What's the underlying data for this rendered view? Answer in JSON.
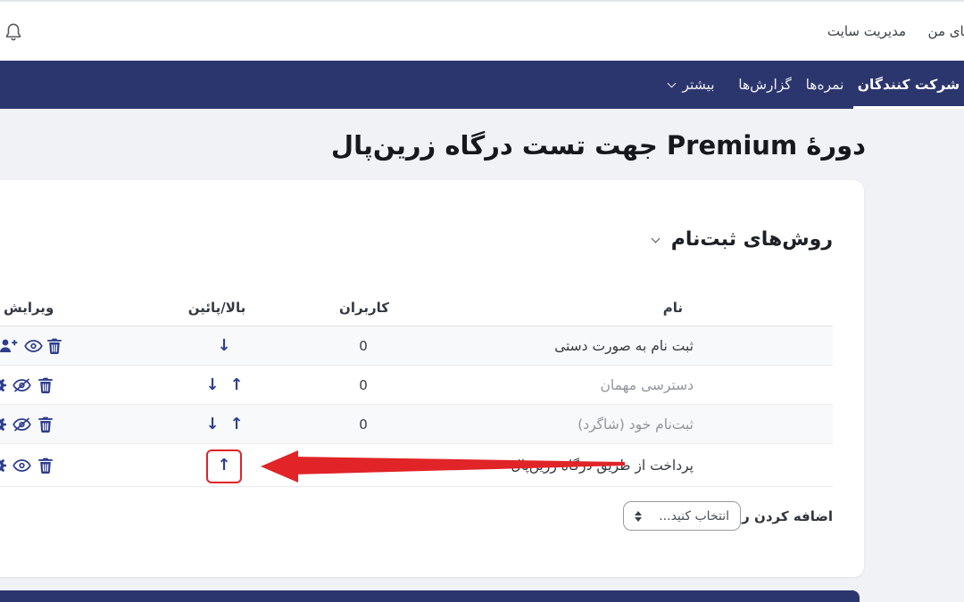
{
  "topbar": {
    "links": [
      {
        "label": "دوره‌های من"
      },
      {
        "label": "مدیریت سایت"
      }
    ]
  },
  "navbar": {
    "tabs": [
      {
        "label": "شرکت کنندگان",
        "active": true
      },
      {
        "label": "نمره‌ها",
        "active": false
      },
      {
        "label": "گزارش‌ها",
        "active": false
      },
      {
        "label": "بیشتر",
        "active": false,
        "has_dropdown": true
      }
    ]
  },
  "page_title": "دورهٔ Premium جهت تست درگاه زرین‌پال",
  "enrol_section": {
    "title": "روش‌های ثبت‌نام",
    "table": {
      "headers": {
        "name": "نام",
        "users": "کاربران",
        "updown": "بالا/پائین",
        "edit": "ویرایش"
      },
      "rows": [
        {
          "name": "ثبت نام به صورت دستی",
          "users": "0",
          "disabled": false,
          "arrows": [
            "down"
          ],
          "icons": [
            "enrol-users",
            "eye",
            "trash"
          ],
          "highlight": false
        },
        {
          "name": "دسترسی مهمان",
          "users": "0",
          "disabled": true,
          "arrows": [
            "down",
            "up"
          ],
          "icons": [
            "gear",
            "eye-slash",
            "trash"
          ],
          "highlight": false
        },
        {
          "name": "ثبت‌نام خود (شاگرد)",
          "users": "0",
          "disabled": true,
          "arrows": [
            "down",
            "up"
          ],
          "icons": [
            "gear",
            "eye-slash",
            "trash"
          ],
          "highlight": false
        },
        {
          "name": "پرداخت از طریق درگاه زرین‌پال",
          "users": "0",
          "disabled": false,
          "arrows": [
            "up"
          ],
          "icons": [
            "gear",
            "eye",
            "trash"
          ],
          "highlight": true
        }
      ]
    },
    "add_method": {
      "label": "اضافه کردن روش",
      "select_value": "انتخاب کنید..."
    }
  },
  "annotation": {
    "box_color": "#e02427",
    "arrow_color": "#e02427"
  },
  "colors": {
    "navbar": "#2c366e",
    "icon_accent": "#2d3c8d",
    "page_bg": "#f0f2f5",
    "stripe": "#f8f9fa",
    "disabled_text": "#8f969c",
    "footer": "#2c366e"
  }
}
